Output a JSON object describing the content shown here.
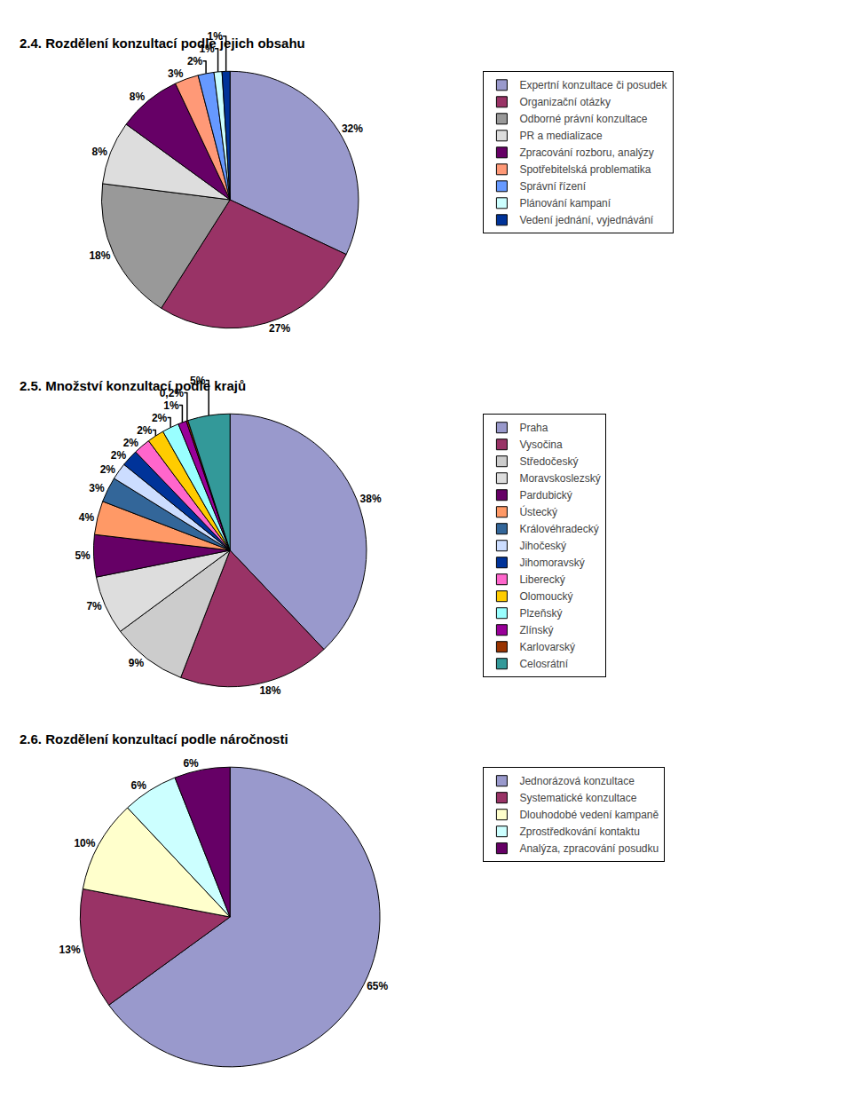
{
  "chart_data": [
    {
      "type": "pie",
      "title": "2.4. Rozdělení konzultací podle jejich obsahu",
      "categories": [
        "Expertní konzultace či posudek",
        "Organizační otázky",
        "Odborné právní konzultace",
        "PR a medializace",
        "Zpracování rozboru, analýzy",
        "Spotřebitelská problematika",
        "Správní řízení",
        "Plánování kampaní",
        "Vedení jednání, vyjednávání"
      ],
      "values": [
        32,
        27,
        18,
        8,
        8,
        3,
        2,
        1,
        1
      ],
      "value_labels": [
        "32%",
        "27%",
        "18%",
        "8%",
        "8%",
        "3%",
        "2%",
        "1%",
        "1%"
      ],
      "colors": [
        "#9999CC",
        "#993366",
        "#999999",
        "#DDDDDD",
        "#660066",
        "#FF9977",
        "#6699FF",
        "#CCFFFF",
        "#003399"
      ],
      "data_labels": true,
      "legend": "right"
    },
    {
      "type": "pie",
      "title": "2.5. Množství konzultací podle krajů",
      "categories": [
        "Praha",
        "Vysočina",
        "Středočeský",
        "Moravskoslezský",
        "Pardubický",
        "Ústecký",
        "Královéhradecký",
        "Jihočeský",
        "Jihomoravský",
        "Liberecký",
        "Olomoucký",
        "Plzeňský",
        "Zlínský",
        "Karlovarský",
        "Celosrátní"
      ],
      "values": [
        38,
        18,
        9,
        7,
        5,
        4,
        3,
        2,
        2,
        2,
        2,
        2,
        1,
        0.2,
        5
      ],
      "value_labels": [
        "38%",
        "18%",
        "9%",
        "7%",
        "5%",
        "4%",
        "3%",
        "2%",
        "2%",
        "2%",
        "2%",
        "2%",
        "1%",
        "0,2%",
        "5%"
      ],
      "colors": [
        "#9999CC",
        "#993366",
        "#CCCCCC",
        "#DDDDDD",
        "#660066",
        "#FF9966",
        "#336699",
        "#CCDDFF",
        "#003399",
        "#FF66CC",
        "#FFCC00",
        "#99FFFF",
        "#990099",
        "#993300",
        "#339999"
      ],
      "data_labels": true,
      "legend": "right"
    },
    {
      "type": "pie",
      "title": "2.6. Rozdělení konzultací podle náročnosti",
      "categories": [
        "Jednorázová konzultace",
        "Systematické konzultace",
        "Dlouhodobé vedení kampaně",
        "Zprostředkování kontaktu",
        "Analýza, zpracování posudku"
      ],
      "values": [
        65,
        13,
        10,
        6,
        6
      ],
      "value_labels": [
        "65%",
        "13%",
        "10%",
        "6%",
        "6%"
      ],
      "colors": [
        "#9999CC",
        "#993366",
        "#FFFFCC",
        "#CCFFFF",
        "#660066"
      ],
      "data_labels": true,
      "legend": "right"
    }
  ]
}
